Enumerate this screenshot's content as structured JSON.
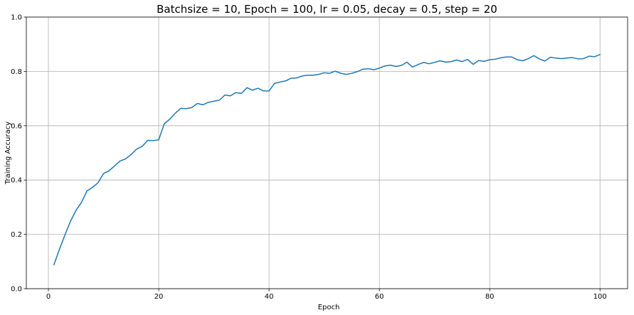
{
  "chart_data": {
    "type": "line",
    "title": "Batchsize = 10, Epoch = 100, lr = 0.05, decay = 0.5, step = 20",
    "xlabel": "Epoch",
    "ylabel": "Training Accuracy",
    "xlim": [
      -4,
      105
    ],
    "ylim": [
      0,
      1
    ],
    "xticks": [
      0,
      20,
      40,
      60,
      80,
      100
    ],
    "yticks": [
      0.0,
      0.2,
      0.4,
      0.6,
      0.8,
      1.0
    ],
    "xtick_labels": [
      "0",
      "20",
      "40",
      "60",
      "80",
      "100"
    ],
    "ytick_labels": [
      "0.0",
      "0.2",
      "0.4",
      "0.6",
      "0.8",
      "1.0"
    ],
    "grid": true,
    "series": [
      {
        "color": "#1f77b4",
        "x": [
          1,
          2,
          3,
          4,
          5,
          6,
          7,
          8,
          9,
          10,
          11,
          12,
          13,
          14,
          15,
          16,
          17,
          18,
          19,
          20,
          21,
          22,
          23,
          24,
          25,
          26,
          27,
          28,
          29,
          30,
          31,
          32,
          33,
          34,
          35,
          36,
          37,
          38,
          39,
          40,
          41,
          42,
          43,
          44,
          45,
          46,
          47,
          48,
          49,
          50,
          51,
          52,
          53,
          54,
          55,
          56,
          57,
          58,
          59,
          60,
          61,
          62,
          63,
          64,
          65,
          66,
          67,
          68,
          69,
          70,
          71,
          72,
          73,
          74,
          75,
          76,
          77,
          78,
          79,
          80,
          81,
          82,
          83,
          84,
          85,
          86,
          87,
          88,
          89,
          90,
          91,
          92,
          93,
          94,
          95,
          96,
          97,
          98,
          99,
          100
        ],
        "y": [
          0.088,
          0.145,
          0.198,
          0.248,
          0.288,
          0.318,
          0.36,
          0.373,
          0.39,
          0.424,
          0.434,
          0.452,
          0.47,
          0.478,
          0.494,
          0.514,
          0.524,
          0.546,
          0.545,
          0.548,
          0.607,
          0.624,
          0.646,
          0.664,
          0.663,
          0.667,
          0.682,
          0.677,
          0.686,
          0.69,
          0.694,
          0.713,
          0.71,
          0.722,
          0.719,
          0.74,
          0.731,
          0.738,
          0.728,
          0.728,
          0.756,
          0.761,
          0.765,
          0.775,
          0.776,
          0.783,
          0.786,
          0.786,
          0.789,
          0.795,
          0.793,
          0.801,
          0.793,
          0.789,
          0.793,
          0.799,
          0.808,
          0.81,
          0.806,
          0.812,
          0.82,
          0.823,
          0.818,
          0.822,
          0.834,
          0.816,
          0.825,
          0.833,
          0.828,
          0.833,
          0.839,
          0.834,
          0.836,
          0.842,
          0.836,
          0.844,
          0.826,
          0.84,
          0.837,
          0.843,
          0.845,
          0.85,
          0.853,
          0.853,
          0.843,
          0.839,
          0.847,
          0.858,
          0.846,
          0.838,
          0.852,
          0.849,
          0.847,
          0.849,
          0.851,
          0.846,
          0.847,
          0.856,
          0.854,
          0.862
        ]
      }
    ]
  }
}
